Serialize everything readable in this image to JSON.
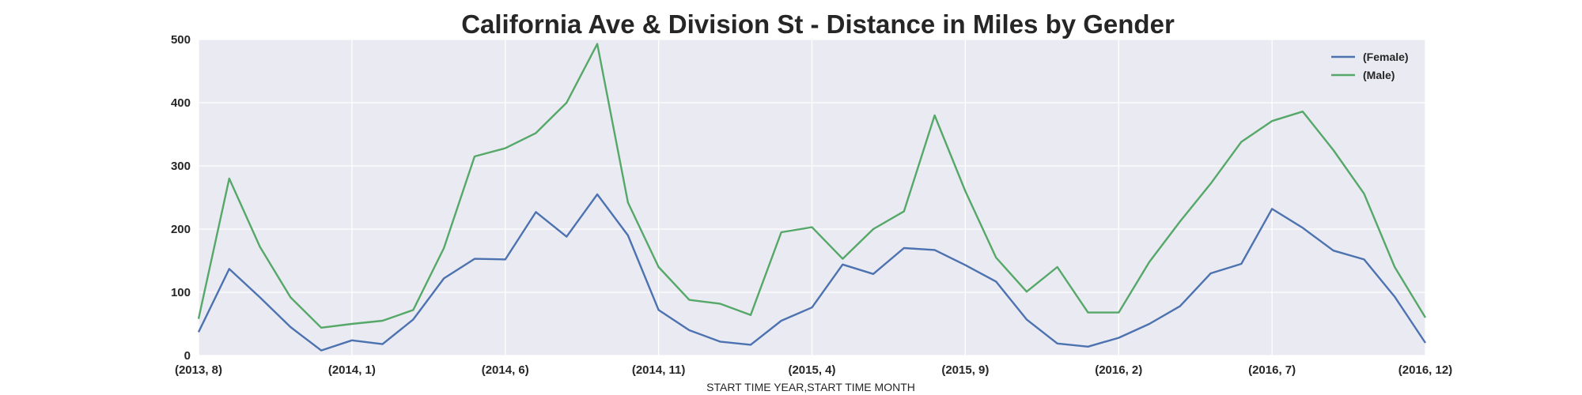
{
  "chart_data": {
    "type": "line",
    "title": "California Ave & Division St - Distance in Miles by Gender",
    "xlabel": "START TIME YEAR,START TIME MONTH",
    "ylabel": "",
    "ylim": [
      0,
      500
    ],
    "yticks": [
      0,
      100,
      200,
      300,
      400,
      500
    ],
    "grid": true,
    "legend_position": "top-right",
    "x": [
      "(2013, 8)",
      "(2013, 9)",
      "(2013, 10)",
      "(2013, 11)",
      "(2013, 12)",
      "(2014, 1)",
      "(2014, 2)",
      "(2014, 3)",
      "(2014, 4)",
      "(2014, 5)",
      "(2014, 6)",
      "(2014, 7)",
      "(2014, 8)",
      "(2014, 9)",
      "(2014, 10)",
      "(2014, 11)",
      "(2014, 12)",
      "(2015, 1)",
      "(2015, 2)",
      "(2015, 3)",
      "(2015, 4)",
      "(2015, 5)",
      "(2015, 6)",
      "(2015, 7)",
      "(2015, 8)",
      "(2015, 9)",
      "(2015, 10)",
      "(2015, 11)",
      "(2015, 12)",
      "(2016, 1)",
      "(2016, 2)",
      "(2016, 3)",
      "(2016, 4)",
      "(2016, 5)",
      "(2016, 6)",
      "(2016, 7)",
      "(2016, 8)",
      "(2016, 9)",
      "(2016, 10)",
      "(2016, 11)",
      "(2016, 12)"
    ],
    "xticks_shown": [
      "(2013, 8)",
      "(2014, 1)",
      "(2014, 6)",
      "(2014, 11)",
      "(2015, 4)",
      "(2015, 9)",
      "(2016, 2)",
      "(2016, 7)",
      "(2016, 12)"
    ],
    "series": [
      {
        "name": "(Female)",
        "color": "#4C72B0",
        "values": [
          37,
          137,
          92,
          45,
          8,
          24,
          18,
          57,
          122,
          153,
          152,
          227,
          188,
          255,
          190,
          72,
          40,
          22,
          17,
          55,
          76,
          144,
          129,
          170,
          167,
          143,
          117,
          57,
          19,
          14,
          28,
          50,
          78,
          130,
          145,
          232,
          202,
          166,
          152,
          93,
          20
        ]
      },
      {
        "name": "(Male)",
        "color": "#55A868",
        "values": [
          58,
          280,
          172,
          92,
          44,
          50,
          55,
          72,
          170,
          315,
          328,
          352,
          400,
          493,
          242,
          140,
          88,
          82,
          64,
          195,
          203,
          153,
          200,
          228,
          380,
          260,
          155,
          101,
          140,
          68,
          68,
          148,
          212,
          272,
          338,
          371,
          386,
          325,
          256,
          140,
          60
        ]
      }
    ]
  }
}
